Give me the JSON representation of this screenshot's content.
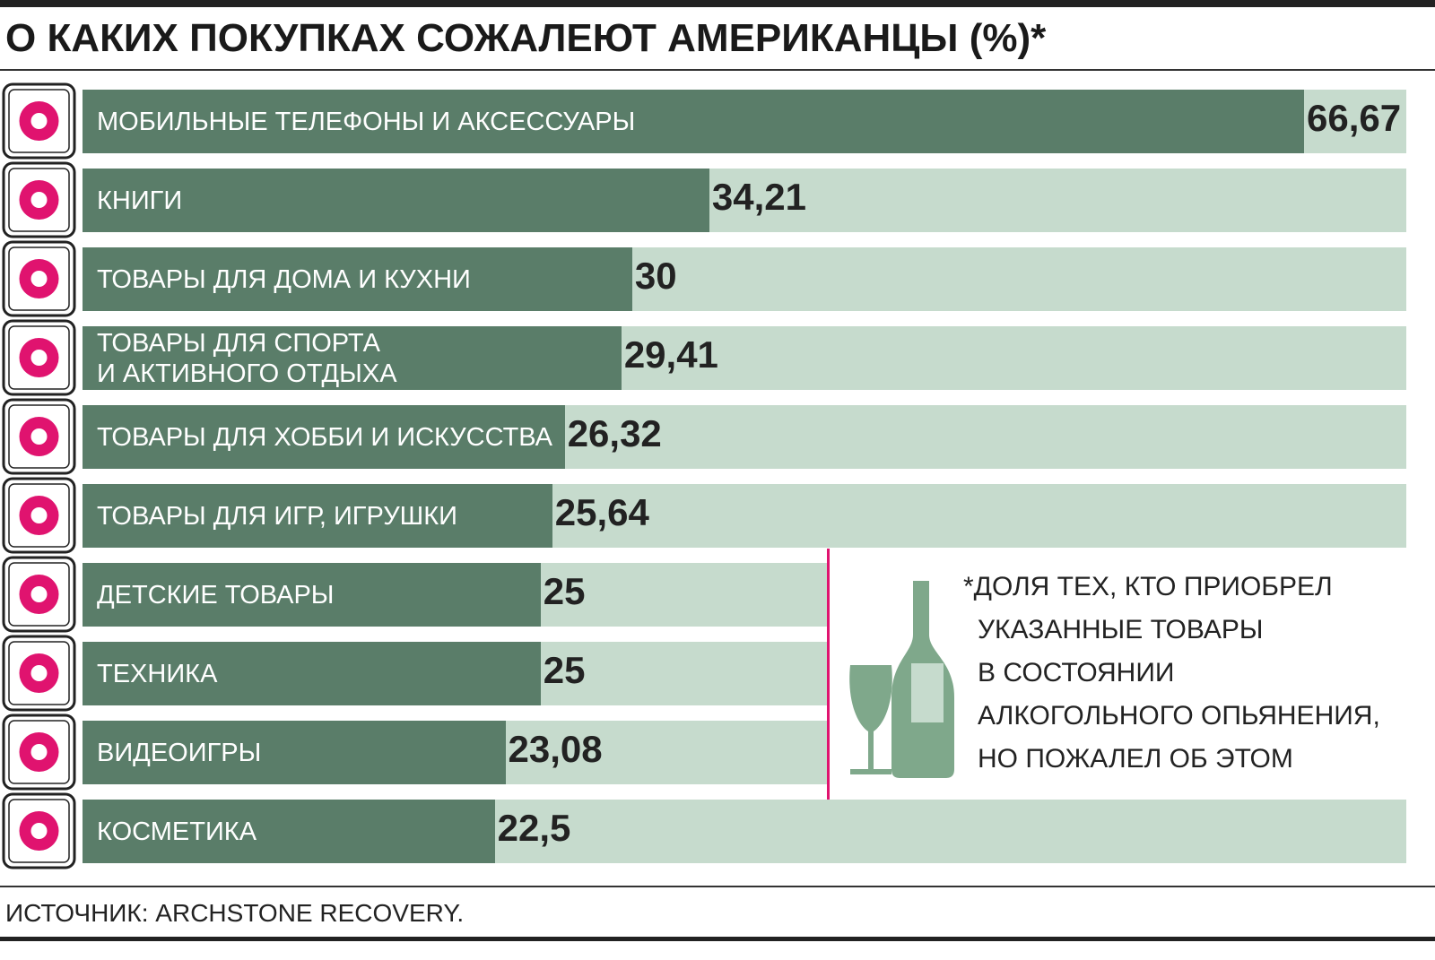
{
  "chart_data": {
    "type": "bar",
    "orientation": "horizontal",
    "title": "О КАКИХ ПОКУПКАХ СОЖАЛЕЮТ АМЕРИКАНЦЫ (%)*",
    "categories": [
      "МОБИЛЬНЫЕ ТЕЛЕФОНЫ И АКСЕССУАРЫ",
      "КНИГИ",
      "ТОВАРЫ ДЛЯ ДОМА И КУХНИ",
      "ТОВАРЫ ДЛЯ СПОРТА\nИ АКТИВНОГО ОТДЫХА",
      "ТОВАРЫ ДЛЯ ХОББИ И ИСКУССТВА",
      "ТОВАРЫ ДЛЯ ИГР, ИГРУШКИ",
      "ДЕТСКИЕ ТОВАРЫ",
      "ТЕХНИКА",
      "ВИДЕОИГРЫ",
      "КОСМЕТИКА"
    ],
    "values": [
      66.67,
      34.21,
      30,
      29.41,
      26.32,
      25.64,
      25,
      25,
      23.08,
      22.5
    ],
    "value_labels": [
      "66,67",
      "34,21",
      "30",
      "29,41",
      "26,32",
      "25,64",
      "25",
      "25",
      "23,08",
      "22,5"
    ],
    "color": "#5a7d69",
    "track_color": "#c6dbcd",
    "xlim": [
      0,
      72.25
    ],
    "note": [
      "*ДОЛЯ ТЕХ, КТО ПРИОБРЕЛ",
      "УКАЗАННЫЕ ТОВАРЫ",
      "В СОСТОЯНИИ",
      "АЛКОГОЛЬНОГО ОПЬЯНЕНИЯ,",
      "НО ПОЖАЛЕЛ ОБ ЭТОМ"
    ],
    "source": "ИСТОЧНИК: ARCHSTONE RECOVERY."
  }
}
